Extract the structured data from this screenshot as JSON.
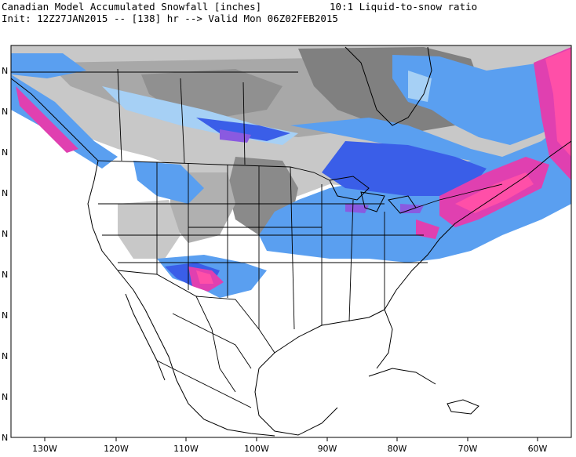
{
  "header": {
    "title": "Canadian Model Accumulated Snowfall [inches]",
    "ratio": "10:1 Liquid-to-snow ratio",
    "init_line": "Init: 12Z27JAN2015 -- [138] hr --> Valid Mon 06Z02FEB2015"
  },
  "axes": {
    "lon_labels": [
      "130W",
      "120W",
      "110W",
      "100W",
      "90W",
      "80W",
      "70W",
      "60W"
    ],
    "lat_labels": [
      "N",
      "N",
      "N",
      "N",
      "N",
      "N",
      "N",
      "N",
      "N",
      "N"
    ]
  },
  "colors": {
    "gray_light": "#c8c8c8",
    "gray_mid": "#a8a8a8",
    "gray_dark": "#808080",
    "blue_light": "#a6d0f5",
    "blue_mid": "#5a9ff0",
    "blue_dark": "#3a5ee8",
    "purple": "#8a5ae0",
    "magenta": "#e040b0",
    "pink": "#ff4fa8"
  }
}
